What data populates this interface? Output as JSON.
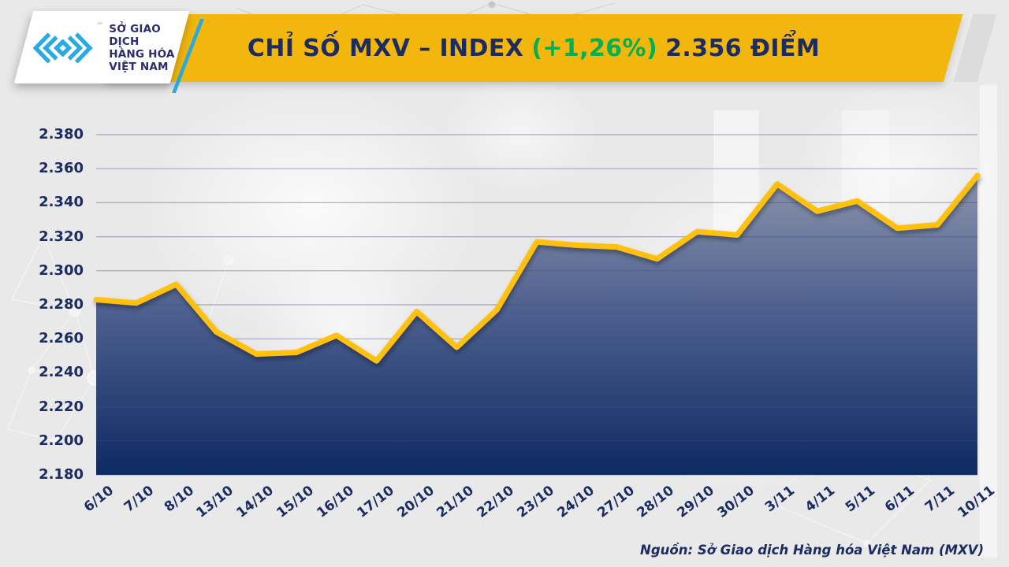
{
  "header": {
    "logo": {
      "line1": "SỞ GIAO DỊCH",
      "line2": "HÀNG HÓA",
      "line3": "VIỆT NAM",
      "tm": "™"
    },
    "title": {
      "prefix": "CHỈ SỐ MXV – INDEX",
      "change": "(+1,26%)",
      "suffix": "2.356 ĐIỂM"
    }
  },
  "footer": {
    "source": "Nguồn: Sở Giao dịch Hàng hóa Việt Nam (MXV)"
  },
  "colors": {
    "background": "#E9E9E9",
    "banner_gold": "#F2B60C",
    "title_navy": "#1B2C62",
    "title_green": "#00B052",
    "line_gold": "#FFC10D",
    "area_top": "#8A93AB",
    "area_mid": "#4E608F",
    "area_bottom": "#0E2A63",
    "grid": "#A9B2CB",
    "axis_text": "#1B2C62",
    "logo_cyan": "#29ABE2",
    "logo_text": "#2E2A6E"
  },
  "chart_data": {
    "type": "area",
    "title": "CHỈ SỐ MXV – INDEX (+1,26%) 2.356 ĐIỂM",
    "xlabel": "",
    "ylabel": "",
    "x": [
      "6/10",
      "7/10",
      "8/10",
      "13/10",
      "14/10",
      "15/10",
      "16/10",
      "17/10",
      "20/10",
      "21/10",
      "22/10",
      "23/10",
      "24/10",
      "27/10",
      "28/10",
      "29/10",
      "30/10",
      "3/11",
      "4/11",
      "5/11",
      "6/11",
      "7/11",
      "10/11"
    ],
    "values": [
      2.283,
      2.281,
      2.292,
      2.264,
      2.251,
      2.252,
      2.262,
      2.247,
      2.276,
      2.255,
      2.277,
      2.317,
      2.315,
      2.314,
      2.307,
      2.323,
      2.321,
      2.351,
      2.335,
      2.341,
      2.325,
      2.327,
      2.356
    ],
    "y_ticks": [
      "2.180",
      "2.200",
      "2.220",
      "2.240",
      "2.260",
      "2.280",
      "2.300",
      "2.320",
      "2.340",
      "2.360",
      "2.380"
    ],
    "ylim": [
      2.18,
      2.38
    ],
    "grid": "horizontal",
    "legend": "none",
    "number_format": "dot as thousands separator (2.356 = 2,356 points)"
  }
}
